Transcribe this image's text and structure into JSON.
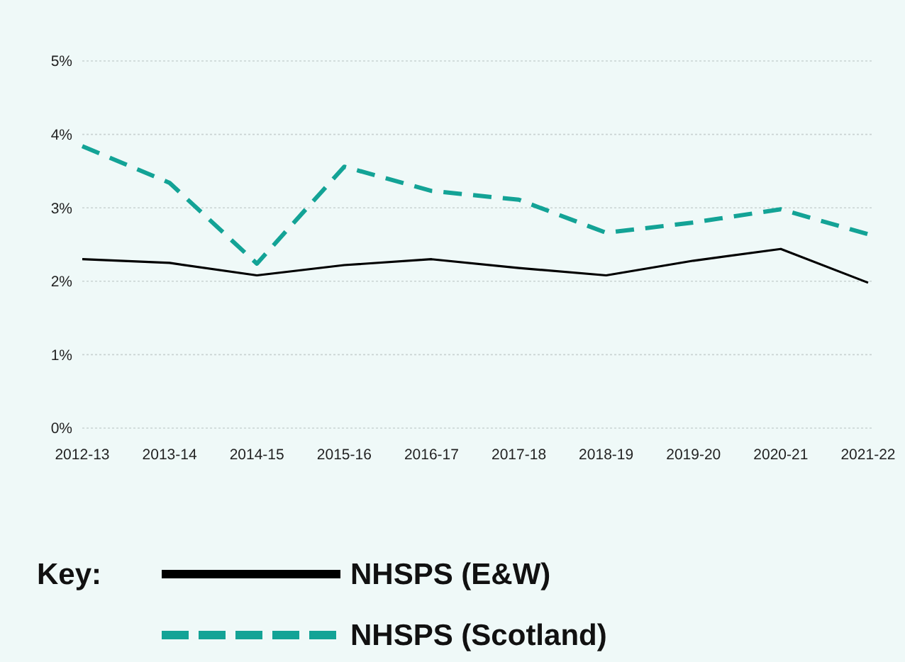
{
  "chart_data": {
    "type": "line",
    "categories": [
      "2012-13",
      "2013-14",
      "2014-15",
      "2015-16",
      "2016-17",
      "2017-18",
      "2018-19",
      "2019-20",
      "2020-21",
      "2021-22"
    ],
    "ylim": [
      0,
      5
    ],
    "yticks": [
      {
        "value": 0,
        "label": "0%"
      },
      {
        "value": 1,
        "label": "1%"
      },
      {
        "value": 2,
        "label": "2%"
      },
      {
        "value": 3,
        "label": "3%"
      },
      {
        "value": 4,
        "label": "4%"
      },
      {
        "value": 5,
        "label": "5%"
      }
    ],
    "grid": "y",
    "legend": "bottom",
    "legend_title": "Key:",
    "marker": "none",
    "series": [
      {
        "name": "NHSPS (E&W)",
        "color": "#000000",
        "line_style": "solid",
        "values": [
          2.3,
          2.25,
          2.08,
          2.22,
          2.3,
          2.18,
          2.08,
          2.28,
          2.44,
          1.98
        ]
      },
      {
        "name": "NHSPS (Scotland)",
        "color": "#13a396",
        "line_style": "dashed",
        "values": [
          3.84,
          3.34,
          2.24,
          3.56,
          3.23,
          3.11,
          2.66,
          2.8,
          2.98,
          2.64
        ]
      }
    ]
  }
}
